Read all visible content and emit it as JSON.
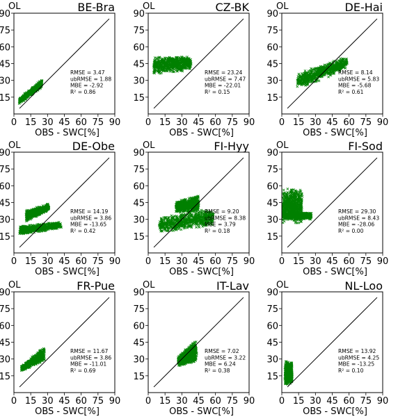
{
  "figure": {
    "ylabel": "OL",
    "xlabel": "OBS - SWC[%]"
  },
  "chart_data": [
    {
      "type": "scatter",
      "title": "BE-Bra",
      "ylabel": "OL",
      "xlabel": "OBS - SWC[%]",
      "xlim": [
        0,
        90
      ],
      "ylim": [
        0,
        90
      ],
      "xticks": [
        0,
        15,
        30,
        45,
        60,
        75,
        90
      ],
      "yticks": [
        15,
        30,
        45,
        60,
        75,
        90
      ],
      "reference_line": [
        [
          5,
          5
        ],
        [
          85,
          85
        ]
      ],
      "stats": [
        "RMSE = 3.47",
        "ubRMSE = 1.88",
        "MBE = -2.92",
        "R² = 0.86"
      ],
      "point_color": "#008000",
      "clusters": [
        {
          "shape": "band",
          "x": [
            5,
            25
          ],
          "y_at_start": [
            9,
            14
          ],
          "y_at_end": [
            24,
            31
          ]
        }
      ]
    },
    {
      "type": "scatter",
      "title": "CZ-BK",
      "ylabel": "OL",
      "xlabel": "OBS - SWC[%]",
      "xlim": [
        0,
        90
      ],
      "ylim": [
        0,
        90
      ],
      "xticks": [
        0,
        15,
        30,
        45,
        60,
        75,
        90
      ],
      "yticks": [
        15,
        30,
        45,
        60,
        75,
        90
      ],
      "reference_line": [
        [
          5,
          5
        ],
        [
          85,
          85
        ]
      ],
      "stats": [
        "RMSE = 23.24",
        "ubRMSE = 7.47",
        "MBE = -22.01",
        "R² = 0.15"
      ],
      "point_color": "#008000",
      "clusters": [
        {
          "shape": "band",
          "x": [
            5,
            38
          ],
          "y_at_start": [
            35,
            52
          ],
          "y_at_end": [
            39,
            52
          ]
        }
      ]
    },
    {
      "type": "scatter",
      "title": "DE-Hai",
      "ylabel": "OL",
      "xlabel": "OBS - SWC[%]",
      "xlim": [
        0,
        90
      ],
      "ylim": [
        0,
        90
      ],
      "xticks": [
        0,
        15,
        30,
        45,
        60,
        75,
        90
      ],
      "yticks": [
        15,
        30,
        45,
        60,
        75,
        90
      ],
      "reference_line": [
        [
          5,
          5
        ],
        [
          85,
          85
        ]
      ],
      "stats": [
        "RMSE = 8.14",
        "ubRMSE = 5.83",
        "MBE = -5.68",
        "R² = 0.61"
      ],
      "point_color": "#008000",
      "clusters": [
        {
          "shape": "band",
          "x": [
            14,
            58
          ],
          "y_at_start": [
            22,
            36
          ],
          "y_at_end": [
            40,
            52
          ]
        }
      ]
    },
    {
      "type": "scatter",
      "title": "DE-Obe",
      "ylabel": "OL",
      "xlabel": "OBS - SWC[%]",
      "xlim": [
        0,
        90
      ],
      "ylim": [
        0,
        90
      ],
      "xticks": [
        0,
        15,
        30,
        45,
        60,
        75,
        90
      ],
      "yticks": [
        15,
        30,
        45,
        60,
        75,
        90
      ],
      "reference_line": [
        [
          5,
          5
        ],
        [
          85,
          85
        ]
      ],
      "stats": [
        "RMSE = 14.19",
        "ubRMSE = 3.86",
        "MBE = -13.65",
        "R² = 0.42"
      ],
      "point_color": "#008000",
      "clusters": [
        {
          "shape": "band",
          "x": [
            11,
            31
          ],
          "y_at_start": [
            28,
            38
          ],
          "y_at_end": [
            38,
            44
          ]
        },
        {
          "shape": "band",
          "x": [
            5,
            42
          ],
          "y_at_start": [
            16,
            24
          ],
          "y_at_end": [
            22,
            28
          ]
        }
      ]
    },
    {
      "type": "scatter",
      "title": "FI-Hyy",
      "ylabel": "OL",
      "xlabel": "OBS - SWC[%]",
      "xlim": [
        0,
        90
      ],
      "ylim": [
        0,
        90
      ],
      "xticks": [
        0,
        15,
        30,
        45,
        60,
        75,
        90
      ],
      "yticks": [
        15,
        30,
        45,
        60,
        75,
        90
      ],
      "reference_line": [
        [
          5,
          5
        ],
        [
          85,
          85
        ]
      ],
      "stats": [
        "RMSE = 9.20",
        "ubRMSE = 8.38",
        "MBE = 3.79",
        "R² = 0.18"
      ],
      "point_color": "#008000",
      "clusters": [
        {
          "shape": "band",
          "x": [
            10,
            58
          ],
          "y_at_start": [
            17,
            33
          ],
          "y_at_end": [
            24,
            40
          ]
        },
        {
          "shape": "band",
          "x": [
            25,
            45
          ],
          "y_at_start": [
            36,
            46
          ],
          "y_at_end": [
            36,
            52
          ]
        }
      ]
    },
    {
      "type": "scatter",
      "title": "FI-Sod",
      "ylabel": "OL",
      "xlabel": "OBS - SWC[%]",
      "xlim": [
        0,
        90
      ],
      "ylim": [
        0,
        90
      ],
      "xticks": [
        0,
        15,
        30,
        45,
        60,
        75,
        90
      ],
      "yticks": [
        15,
        30,
        45,
        60,
        75,
        90
      ],
      "reference_line": [
        [
          5,
          5
        ],
        [
          85,
          85
        ]
      ],
      "stats": [
        "RMSE = 29.30",
        "ubRMSE = 8.43",
        "MBE = -28.06",
        "R² = 0.00"
      ],
      "point_color": "#008000",
      "clusters": [
        {
          "shape": "band",
          "x": [
            1,
            18
          ],
          "y_at_start": [
            26,
            58
          ],
          "y_at_end": [
            26,
            58
          ]
        },
        {
          "shape": "band",
          "x": [
            1,
            26
          ],
          "y_at_start": [
            30,
            36
          ],
          "y_at_end": [
            30,
            36
          ]
        }
      ]
    },
    {
      "type": "scatter",
      "title": "FR-Pue",
      "ylabel": "OL",
      "xlabel": "OBS - SWC[%]",
      "xlim": [
        0,
        90
      ],
      "ylim": [
        0,
        90
      ],
      "xticks": [
        0,
        15,
        30,
        45,
        60,
        75,
        90
      ],
      "yticks": [
        15,
        30,
        45,
        60,
        75,
        90
      ],
      "reference_line": [
        [
          5,
          5
        ],
        [
          85,
          85
        ]
      ],
      "stats": [
        "RMSE = 11.67",
        "ubRMSE = 3.86",
        "MBE = -11.01",
        "R² = 0.69"
      ],
      "point_color": "#008000",
      "clusters": [
        {
          "shape": "band",
          "x": [
            7,
            27
          ],
          "y_at_start": [
            19,
            24
          ],
          "y_at_end": [
            28,
            41
          ]
        }
      ]
    },
    {
      "type": "scatter",
      "title": "IT-Lav",
      "ylabel": "OL",
      "xlabel": "OBS - SWC[%]",
      "xlim": [
        0,
        90
      ],
      "ylim": [
        0,
        90
      ],
      "xticks": [
        0,
        15,
        30,
        45,
        60,
        75,
        90
      ],
      "yticks": [
        15,
        30,
        45,
        60,
        75,
        90
      ],
      "reference_line": [
        [
          5,
          5
        ],
        [
          85,
          85
        ]
      ],
      "stats": [
        "RMSE = 7.02",
        "ubRMSE = 3.22",
        "MBE = 6.24",
        "R² = 0.38"
      ],
      "point_color": "#008000",
      "clusters": [
        {
          "shape": "band",
          "x": [
            27,
            43
          ],
          "y_at_start": [
            23,
            33
          ],
          "y_at_end": [
            27,
            48
          ]
        }
      ]
    },
    {
      "type": "scatter",
      "title": "NL-Loo",
      "ylabel": "OL",
      "xlabel": "OBS - SWC[%]",
      "xlim": [
        0,
        90
      ],
      "ylim": [
        0,
        90
      ],
      "xticks": [
        0,
        15,
        30,
        45,
        60,
        75,
        90
      ],
      "yticks": [
        15,
        30,
        45,
        60,
        75,
        90
      ],
      "reference_line": [
        [
          5,
          5
        ],
        [
          85,
          85
        ]
      ],
      "stats": [
        "RMSE = 13.92",
        "ubRMSE = 4.25",
        "MBE = -13.25",
        "R² = 0.10"
      ],
      "point_color": "#008000",
      "clusters": [
        {
          "shape": "band",
          "x": [
            3,
            9
          ],
          "y_at_start": [
            6,
            28
          ],
          "y_at_end": [
            8,
            28
          ]
        }
      ]
    }
  ]
}
